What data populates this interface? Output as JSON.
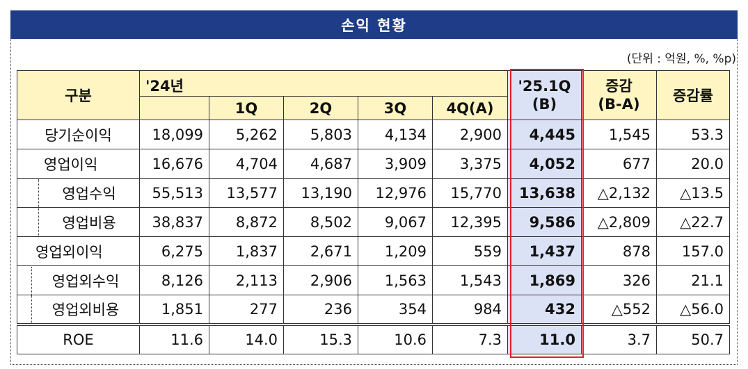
{
  "title": "손익 현황",
  "unit_note": "(단위 : 억원, %, %p)",
  "headers": {
    "category": "구분",
    "year": "'24년",
    "quarters": [
      "1Q",
      "2Q",
      "3Q",
      "4Q(A)"
    ],
    "current_line1": "'25.1Q",
    "current_line2": "(B)",
    "change_line1": "증감",
    "change_line2": "(B-A)",
    "change_rate": "증감률"
  },
  "rows": [
    {
      "label": "당기순이익",
      "y24": "18,099",
      "q1": "5,262",
      "q2": "5,803",
      "q3": "4,134",
      "q4": "2,900",
      "cur": "4,445",
      "chg": "1,545",
      "rate": "53.3"
    },
    {
      "label": "영업이익",
      "y24": "16,676",
      "q1": "4,704",
      "q2": "4,687",
      "q3": "3,909",
      "q4": "3,375",
      "cur": "4,052",
      "chg": "677",
      "rate": "20.0"
    },
    {
      "label": "영업수익",
      "y24": "55,513",
      "q1": "13,577",
      "q2": "13,190",
      "q3": "12,976",
      "q4": "15,770",
      "cur": "13,638",
      "chg": "△2,132",
      "rate": "△13.5"
    },
    {
      "label": "영업비용",
      "y24": "38,837",
      "q1": "8,872",
      "q2": "8,502",
      "q3": "9,067",
      "q4": "12,395",
      "cur": "9,586",
      "chg": "△2,809",
      "rate": "△22.7"
    },
    {
      "label": "영업외이익",
      "y24": "6,275",
      "q1": "1,837",
      "q2": "2,671",
      "q3": "1,209",
      "q4": "559",
      "cur": "1,437",
      "chg": "878",
      "rate": "157.0"
    },
    {
      "label": "영업외수익",
      "y24": "8,126",
      "q1": "2,113",
      "q2": "2,906",
      "q3": "1,563",
      "q4": "1,543",
      "cur": "1,869",
      "chg": "326",
      "rate": "21.1"
    },
    {
      "label": "영업외비용",
      "y24": "1,851",
      "q1": "277",
      "q2": "236",
      "q3": "354",
      "q4": "984",
      "cur": "432",
      "chg": "△552",
      "rate": "△56.0"
    },
    {
      "label": "ROE",
      "y24": "11.6",
      "q1": "14.0",
      "q2": "15.3",
      "q3": "10.6",
      "q4": "7.3",
      "cur": "11.0",
      "chg": "3.7",
      "rate": "50.7"
    }
  ]
}
